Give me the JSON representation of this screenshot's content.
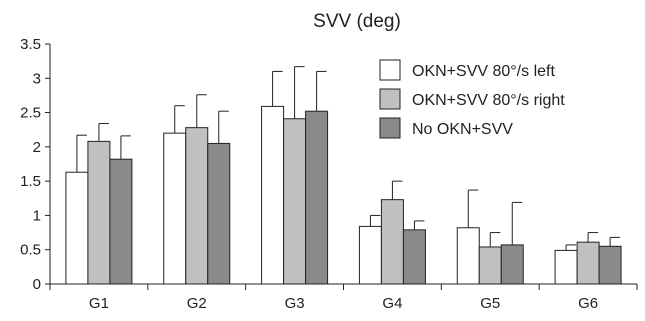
{
  "chart_data": {
    "type": "bar",
    "title": "SVV (deg)",
    "xlabel": "",
    "ylabel": "",
    "ylim": [
      0,
      3.5
    ],
    "yticks": [
      "0",
      "0.5",
      "1",
      "1.5",
      "2",
      "2.5",
      "3",
      "3.5"
    ],
    "categories": [
      "G1",
      "G2",
      "G3",
      "G4",
      "G5",
      "G6"
    ],
    "legend_position": "top-right",
    "grid": false,
    "series": [
      {
        "name": "OKN+SVV 80°/s left",
        "color": "#ffffff",
        "values": [
          1.63,
          2.2,
          2.59,
          0.84,
          0.82,
          0.49
        ],
        "error": [
          0.54,
          0.4,
          0.51,
          0.16,
          0.55,
          0.08
        ]
      },
      {
        "name": "OKN+SVV 80°/s right",
        "color": "#c0c0c0",
        "values": [
          2.08,
          2.28,
          2.41,
          1.23,
          0.54,
          0.61
        ],
        "error": [
          0.26,
          0.48,
          0.76,
          0.27,
          0.21,
          0.14
        ]
      },
      {
        "name": "No OKN+SVV",
        "color": "#8a8a8a",
        "values": [
          1.82,
          2.05,
          2.52,
          0.79,
          0.57,
          0.55
        ],
        "error": [
          0.34,
          0.47,
          0.58,
          0.13,
          0.62,
          0.13
        ]
      }
    ]
  }
}
